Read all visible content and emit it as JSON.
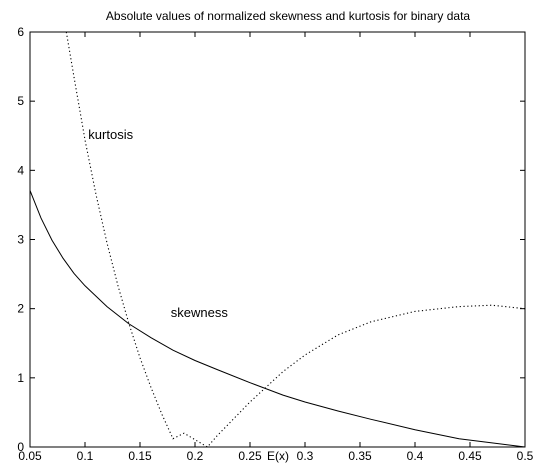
{
  "chart_data": {
    "type": "line",
    "title": "Absolute values of normalized skewness and kurtosis for binary data",
    "xlabel": "E(x)",
    "ylabel": "",
    "xlim": [
      0.05,
      0.5
    ],
    "ylim": [
      0,
      6
    ],
    "xticks": [
      "0.05",
      "0.1",
      "0.15",
      "0.2",
      "0.25",
      "0.3",
      "0.35",
      "0.4",
      "0.45",
      "0.5"
    ],
    "yticks": [
      "0",
      "1",
      "2",
      "3",
      "4",
      "5",
      "6"
    ],
    "grid": false,
    "legend": "none",
    "series": [
      {
        "name": "skewness",
        "style": "solid",
        "color": "#000000",
        "x": [
          0.05,
          0.06,
          0.07,
          0.08,
          0.09,
          0.1,
          0.12,
          0.14,
          0.16,
          0.18,
          0.2,
          0.22,
          0.25,
          0.28,
          0.3,
          0.33,
          0.36,
          0.4,
          0.44,
          0.47,
          0.5
        ],
        "y": [
          3.71,
          3.31,
          2.99,
          2.73,
          2.51,
          2.33,
          2.03,
          1.78,
          1.58,
          1.4,
          1.25,
          1.12,
          0.93,
          0.75,
          0.65,
          0.52,
          0.4,
          0.25,
          0.12,
          0.06,
          0.0
        ]
      },
      {
        "name": "kurtosis",
        "style": "dotted",
        "color": "#000000",
        "x": [
          0.083,
          0.09,
          0.1,
          0.11,
          0.12,
          0.13,
          0.14,
          0.15,
          0.16,
          0.17,
          0.18,
          0.19,
          0.2113,
          0.22,
          0.25,
          0.28,
          0.3,
          0.33,
          0.36,
          0.4,
          0.44,
          0.47,
          0.5
        ],
        "y": [
          6.0,
          5.35,
          4.44,
          3.65,
          2.95,
          2.33,
          1.78,
          1.29,
          0.86,
          0.47,
          0.12,
          0.2,
          0.0,
          0.16,
          0.65,
          1.09,
          1.33,
          1.62,
          1.81,
          1.96,
          2.03,
          2.05,
          2.0
        ]
      }
    ],
    "annotations": [
      {
        "text": "kurtosis",
        "x": 0.103,
        "y": 4.45
      },
      {
        "text": "skewness",
        "x": 0.178,
        "y": 1.88
      }
    ]
  }
}
